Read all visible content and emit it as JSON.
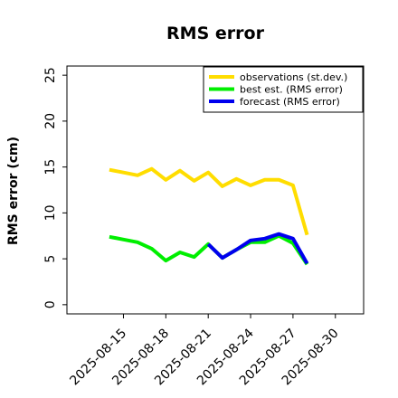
{
  "chart_data": {
    "type": "line",
    "title": "RMS error",
    "ylabel": "RMS error (cm)",
    "xlabel": "",
    "ylim": [
      -1,
      26
    ],
    "xlim": [
      "2025-08-11",
      "2025-09-01"
    ],
    "y_ticks": [
      0,
      5,
      10,
      15,
      20,
      25
    ],
    "x_ticks": [
      "2025-08-15",
      "2025-08-18",
      "2025-08-21",
      "2025-08-24",
      "2025-08-27",
      "2025-08-30"
    ],
    "x_tick_colors": [
      "#000000",
      "#000000",
      "#228b22",
      "#000000",
      "#000000",
      "#000000"
    ],
    "grid": false,
    "legend_position": "top-right",
    "series": [
      {
        "name": "observations (st.dev.)",
        "color": "#ffdd00",
        "x": [
          "2025-08-14",
          "2025-08-15",
          "2025-08-16",
          "2025-08-17",
          "2025-08-18",
          "2025-08-19",
          "2025-08-20",
          "2025-08-21",
          "2025-08-22",
          "2025-08-23",
          "2025-08-24",
          "2025-08-25",
          "2025-08-26",
          "2025-08-27",
          "2025-08-28"
        ],
        "values": [
          14.7,
          14.4,
          14.1,
          14.8,
          13.6,
          14.6,
          13.5,
          14.4,
          12.9,
          13.7,
          13.0,
          13.6,
          13.6,
          13.0,
          7.6
        ]
      },
      {
        "name": "best est. (RMS error)",
        "color": "#00ee00",
        "x": [
          "2025-08-14",
          "2025-08-15",
          "2025-08-16",
          "2025-08-17",
          "2025-08-18",
          "2025-08-19",
          "2025-08-20",
          "2025-08-21",
          "2025-08-22",
          "2025-08-23",
          "2025-08-24",
          "2025-08-25",
          "2025-08-26",
          "2025-08-27",
          "2025-08-28"
        ],
        "values": [
          7.4,
          7.1,
          6.8,
          6.1,
          4.8,
          5.7,
          5.2,
          6.6,
          5.1,
          6.0,
          6.8,
          6.8,
          7.5,
          6.7,
          4.4
        ]
      },
      {
        "name": "forecast (RMS error)",
        "color": "#0000ee",
        "x": [
          "2025-08-21",
          "2025-08-22",
          "2025-08-23",
          "2025-08-24",
          "2025-08-25",
          "2025-08-26",
          "2025-08-27",
          "2025-08-28"
        ],
        "values": [
          6.6,
          5.1,
          6.0,
          7.0,
          7.2,
          7.7,
          7.2,
          4.5
        ]
      }
    ]
  }
}
